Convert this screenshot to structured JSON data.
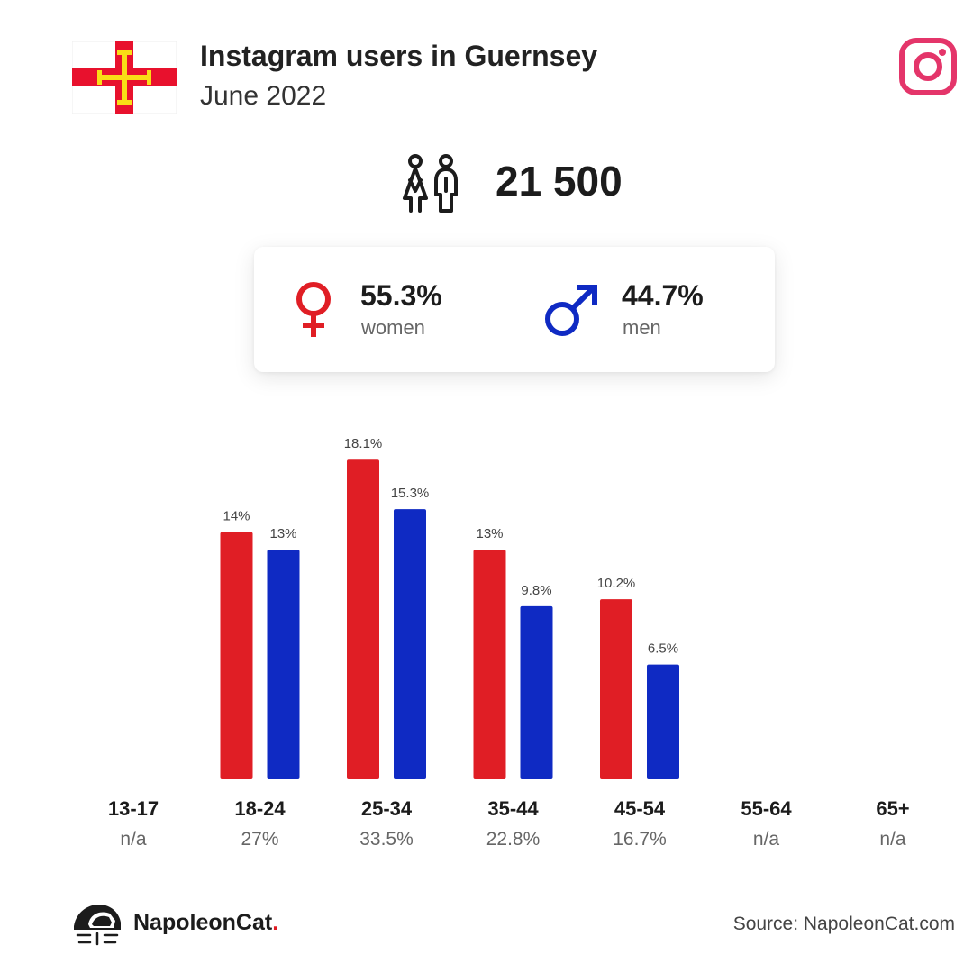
{
  "header": {
    "title": "Instagram users in Guernsey",
    "subtitle": "June 2022"
  },
  "total_users": "21 500",
  "gender": {
    "women_pct": "55.3%",
    "women_label": "women",
    "men_pct": "44.7%",
    "men_label": "men"
  },
  "colors": {
    "women": "#e01e25",
    "men": "#0f2ac3",
    "instagram": "#e4356a",
    "flag_red": "#e8112d",
    "flag_gold": "#f9dd16"
  },
  "icons": {
    "flag": "guernsey-flag",
    "platform": "instagram-icon",
    "users": "users-icon",
    "women": "female-symbol-icon",
    "men": "male-symbol-icon",
    "brand": "napoleoncat-logo"
  },
  "chart_data": {
    "type": "bar",
    "categories": [
      "13-17",
      "18-24",
      "25-34",
      "35-44",
      "45-54",
      "55-64",
      "65+"
    ],
    "category_totals": [
      "n/a",
      "27%",
      "33.5%",
      "22.8%",
      "16.7%",
      "n/a",
      "n/a"
    ],
    "series": [
      {
        "key": "women",
        "values": [
          null,
          14,
          18.1,
          13,
          10.2,
          null,
          null
        ],
        "labels": [
          "",
          "14%",
          "18.1%",
          "13%",
          "10.2%",
          "",
          ""
        ]
      },
      {
        "key": "men",
        "values": [
          null,
          13,
          15.3,
          9.8,
          6.5,
          null,
          null
        ],
        "labels": [
          "",
          "13%",
          "15.3%",
          "9.8%",
          "6.5%",
          "",
          ""
        ]
      }
    ],
    "ylim": [
      0,
      20
    ]
  },
  "footer": {
    "brand_name": "NapoleonCat",
    "brand_dot": ".",
    "source": "Source: NapoleonCat.com"
  }
}
